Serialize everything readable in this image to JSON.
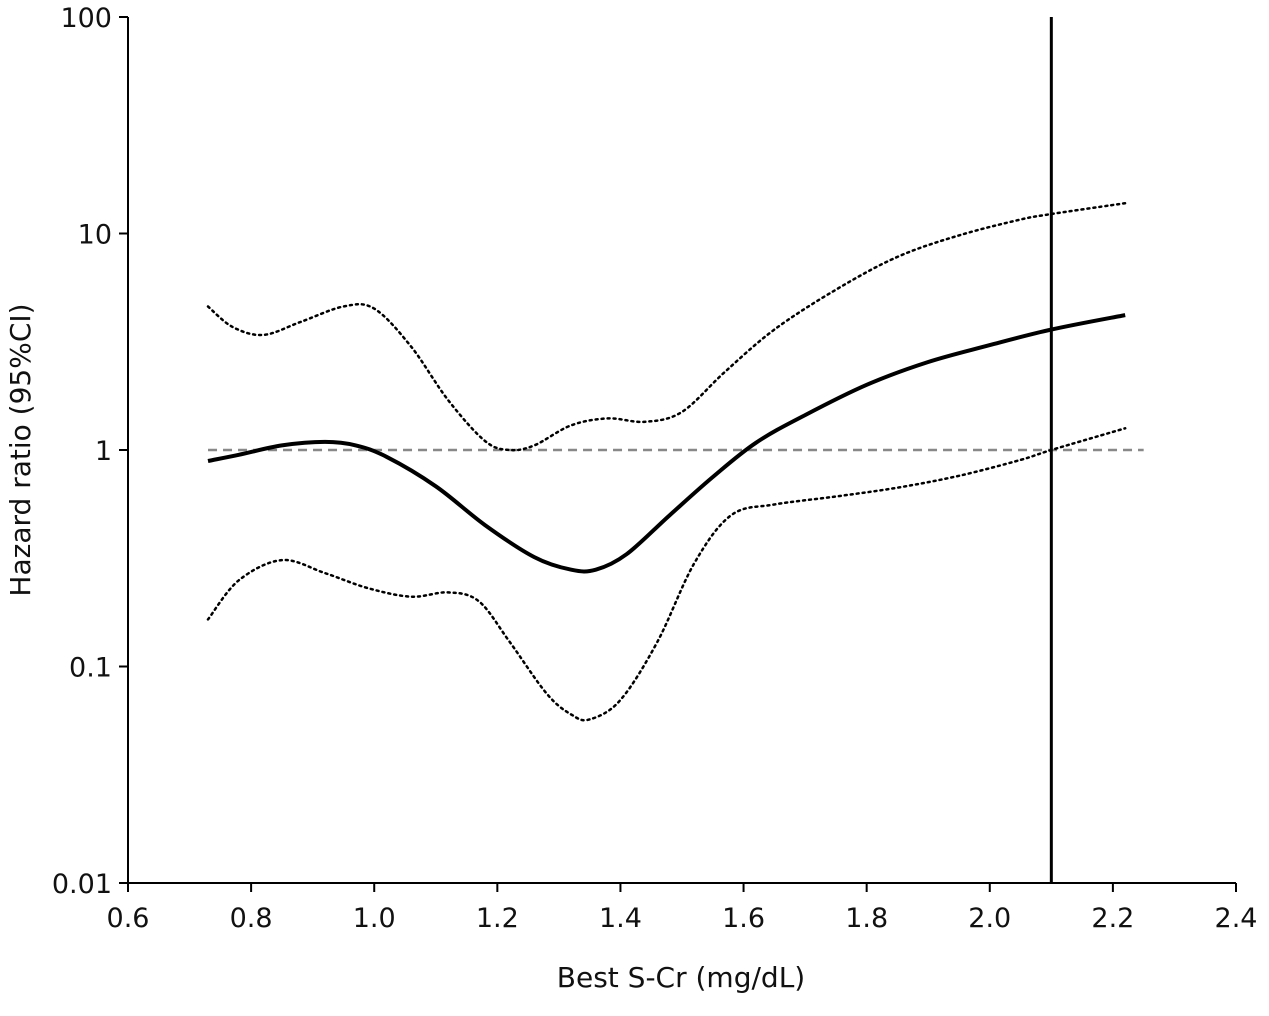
{
  "chart_data": {
    "type": "line",
    "title": "",
    "xlabel": "Best S-Cr (mg/dL)",
    "ylabel": "Hazard ratio (95%CI)",
    "xlim": [
      0.6,
      2.4
    ],
    "ylim": [
      0.01,
      100
    ],
    "yscale": "log",
    "x_ticks": [
      0.6,
      0.8,
      1.0,
      1.2,
      1.4,
      1.6,
      1.8,
      2.0,
      2.2,
      2.4
    ],
    "x_tick_labels": [
      "0.6",
      "0.8",
      "1.0",
      "1.2",
      "1.4",
      "1.6",
      "1.8",
      "2.0",
      "2.2",
      "2.4"
    ],
    "y_ticks": [
      0.01,
      0.1,
      1,
      10,
      100
    ],
    "y_tick_labels": [
      "0.01",
      "0.1",
      "1",
      "10",
      "100"
    ],
    "reference_line": {
      "y": 1,
      "style": "dashed",
      "color": "#888888"
    },
    "vertical_line": {
      "x": 2.1,
      "color": "#000000"
    },
    "series": [
      {
        "name": "Hazard ratio",
        "style": "solid",
        "color": "#000000",
        "x": [
          0.73,
          0.78,
          0.85,
          0.92,
          0.97,
          1.02,
          1.1,
          1.18,
          1.26,
          1.32,
          1.36,
          1.41,
          1.48,
          1.55,
          1.62,
          1.7,
          1.8,
          1.9,
          2.0,
          2.1,
          2.22
        ],
        "y": [
          0.89,
          0.95,
          1.05,
          1.09,
          1.05,
          0.93,
          0.68,
          0.45,
          0.32,
          0.28,
          0.28,
          0.33,
          0.5,
          0.75,
          1.08,
          1.45,
          2.0,
          2.55,
          3.05,
          3.6,
          4.2
        ]
      },
      {
        "name": "Upper 95% CI",
        "style": "dotted",
        "color": "#000000",
        "x": [
          0.73,
          0.77,
          0.82,
          0.88,
          0.95,
          1.0,
          1.06,
          1.12,
          1.18,
          1.22,
          1.26,
          1.32,
          1.38,
          1.44,
          1.5,
          1.57,
          1.65,
          1.75,
          1.85,
          1.95,
          2.05,
          2.1,
          2.22
        ],
        "y": [
          4.6,
          3.7,
          3.4,
          3.9,
          4.6,
          4.5,
          3.0,
          1.7,
          1.1,
          1.0,
          1.05,
          1.3,
          1.4,
          1.35,
          1.5,
          2.3,
          3.6,
          5.5,
          7.8,
          9.8,
          11.6,
          12.3,
          13.8
        ]
      },
      {
        "name": "Lower 95% CI",
        "style": "dotted",
        "color": "#000000",
        "x": [
          0.73,
          0.78,
          0.85,
          0.92,
          0.99,
          1.06,
          1.12,
          1.17,
          1.22,
          1.28,
          1.32,
          1.35,
          1.4,
          1.46,
          1.52,
          1.58,
          1.65,
          1.75,
          1.85,
          1.95,
          2.05,
          2.1,
          2.22
        ],
        "y": [
          0.165,
          0.25,
          0.31,
          0.27,
          0.23,
          0.21,
          0.22,
          0.2,
          0.13,
          0.075,
          0.06,
          0.057,
          0.07,
          0.13,
          0.3,
          0.5,
          0.56,
          0.61,
          0.67,
          0.76,
          0.9,
          1.0,
          1.26
        ]
      }
    ]
  }
}
